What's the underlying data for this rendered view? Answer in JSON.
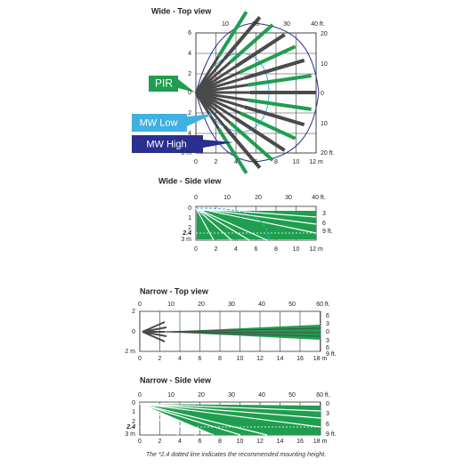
{
  "panels": [
    {
      "title": "Wide - Top view",
      "top_labels": [
        "10",
        "20",
        "30",
        "40 ft."
      ],
      "right_labels": [
        "20",
        "10",
        "0",
        "10",
        "20 ft."
      ],
      "left_labels": [
        "6",
        "4",
        "2",
        "0",
        "2",
        "4",
        "6 m"
      ],
      "bottom_labels": [
        "0",
        "2",
        "4",
        "6",
        "8",
        "10",
        "12 m"
      ]
    },
    {
      "title": "Wide - Side view",
      "top_labels": [
        "0",
        "10",
        "20",
        "30",
        "40 ft."
      ],
      "right_labels": [
        "3",
        "6",
        "9 ft."
      ],
      "left_labels": [
        "0",
        "1",
        "2",
        "2.4",
        "3 m"
      ],
      "bottom_labels": [
        "0",
        "2",
        "4",
        "6",
        "8",
        "10",
        "12 m"
      ]
    },
    {
      "title": "Narrow - Top view",
      "top_labels": [
        "0",
        "10",
        "20",
        "30",
        "40",
        "50",
        "60 ft."
      ],
      "right_labels": [
        "6",
        "3",
        "0",
        "3",
        "6",
        "9 ft."
      ],
      "left_labels": [
        "2",
        "0",
        "2 m"
      ],
      "bottom_labels": [
        "0",
        "2",
        "4",
        "6",
        "8",
        "10",
        "12",
        "14",
        "16",
        "18 m"
      ]
    },
    {
      "title": "Narrow - Side view",
      "top_labels": [
        "0",
        "10",
        "20",
        "30",
        "40",
        "50",
        "60 ft."
      ],
      "right_labels": [
        "0",
        "3",
        "6",
        "9 ft."
      ],
      "left_labels": [
        "0",
        "1",
        "2",
        "2.4",
        "3 m"
      ],
      "bottom_labels": [
        "0",
        "2",
        "4",
        "6",
        "8",
        "10",
        "12",
        "14",
        "16",
        "18 m"
      ]
    }
  ],
  "callouts": {
    "pir": "PIR",
    "mw_low": "MW Low",
    "mw_high": "MW High"
  },
  "footnote": "The *2.4 dotted line indicates the recommended mounting height."
}
